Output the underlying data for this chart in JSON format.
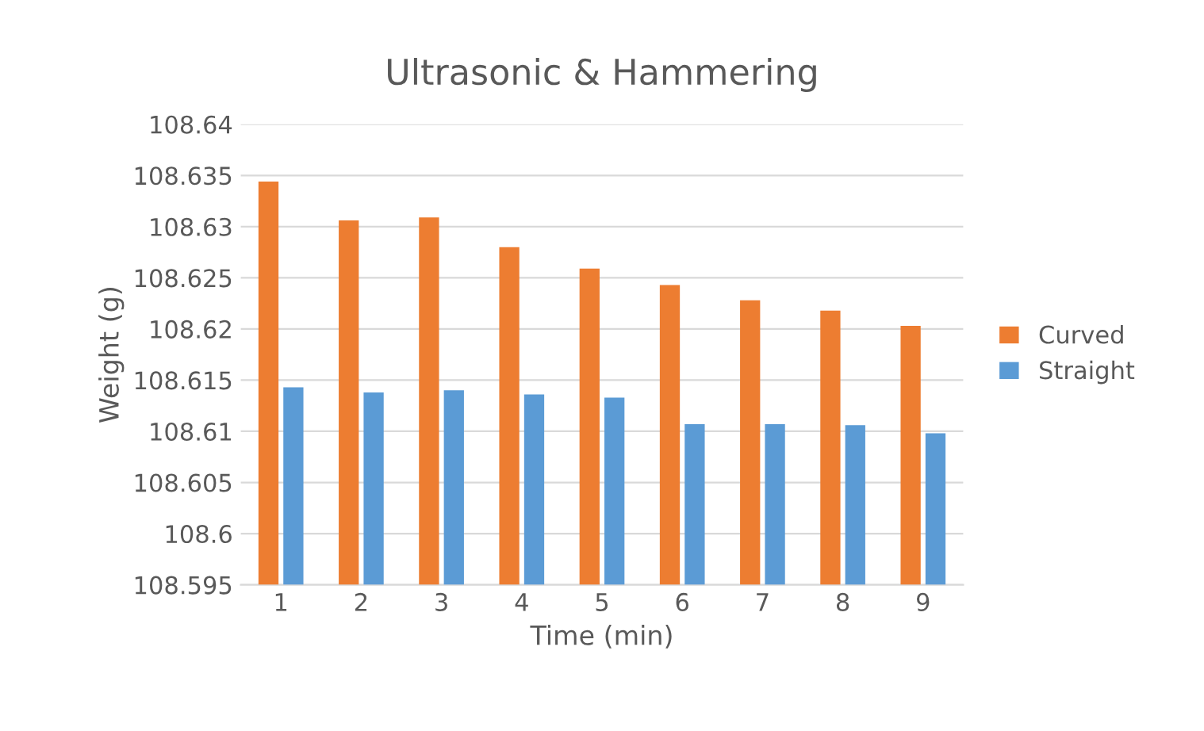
{
  "chart_data": {
    "type": "bar",
    "title": "Ultrasonic & Hammering",
    "xlabel": "Time (min)",
    "ylabel": "Weight (g)",
    "categories": [
      "1",
      "2",
      "3",
      "4",
      "5",
      "6",
      "7",
      "8",
      "9"
    ],
    "series": [
      {
        "name": "Curved",
        "color": "#ed7d31",
        "values": [
          108.6344,
          108.6306,
          108.6309,
          108.628,
          108.6259,
          108.6243,
          108.6228,
          108.6218,
          108.6203
        ]
      },
      {
        "name": "Straight",
        "color": "#5b9bd5",
        "values": [
          108.6143,
          108.6138,
          108.614,
          108.6136,
          108.6133,
          108.6107,
          108.6107,
          108.6106,
          108.6098
        ]
      }
    ],
    "ylim": [
      108.595,
      108.64
    ],
    "yticks": [
      108.595,
      108.6,
      108.605,
      108.61,
      108.615,
      108.62,
      108.625,
      108.63,
      108.635,
      108.64
    ],
    "grid": "y",
    "legend": "right"
  }
}
